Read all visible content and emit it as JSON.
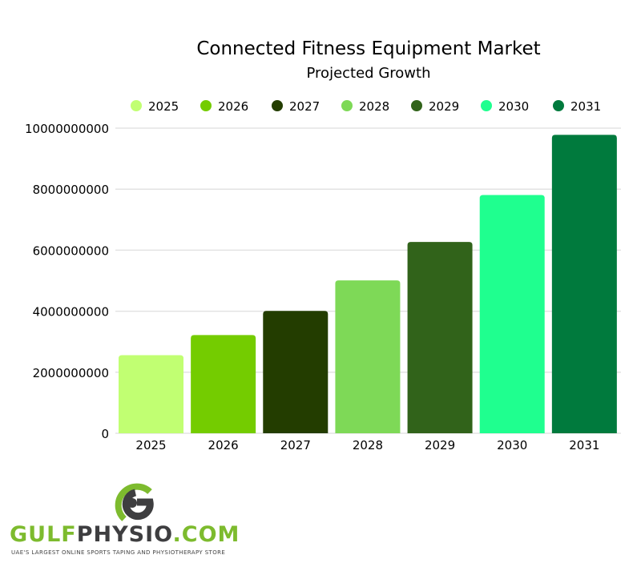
{
  "chart_data": {
    "type": "bar",
    "title": "Connected Fitness Equipment Market",
    "subtitle": "Projected Growth",
    "xlabel": "",
    "ylabel": "",
    "categories": [
      "2025",
      "2026",
      "2027",
      "2028",
      "2029",
      "2030",
      "2031"
    ],
    "values": [
      2560000000,
      3220000000,
      4010000000,
      5010000000,
      6270000000,
      7810000000,
      9780000000
    ],
    "colors": [
      "#c1ff72",
      "#74cc00",
      "#233d00",
      "#7ed957",
      "#31631a",
      "#1fff8f",
      "#007a3d"
    ],
    "ylim": [
      0,
      10000000000
    ],
    "yticks": [
      "0",
      "2000000000",
      "4000000000",
      "6000000000",
      "8000000000",
      "10000000000"
    ],
    "ytick_values": [
      0,
      2000000000,
      4000000000,
      6000000000,
      8000000000,
      10000000000
    ],
    "grid": true,
    "legend_position": "top"
  },
  "logo": {
    "brand_part1": "GULF",
    "brand_part2": "PHYSIO",
    "brand_part3": ".COM",
    "tagline": "UAE'S LARGEST ONLINE SPORTS TAPING AND PHYSIOTHERAPY STORE"
  }
}
